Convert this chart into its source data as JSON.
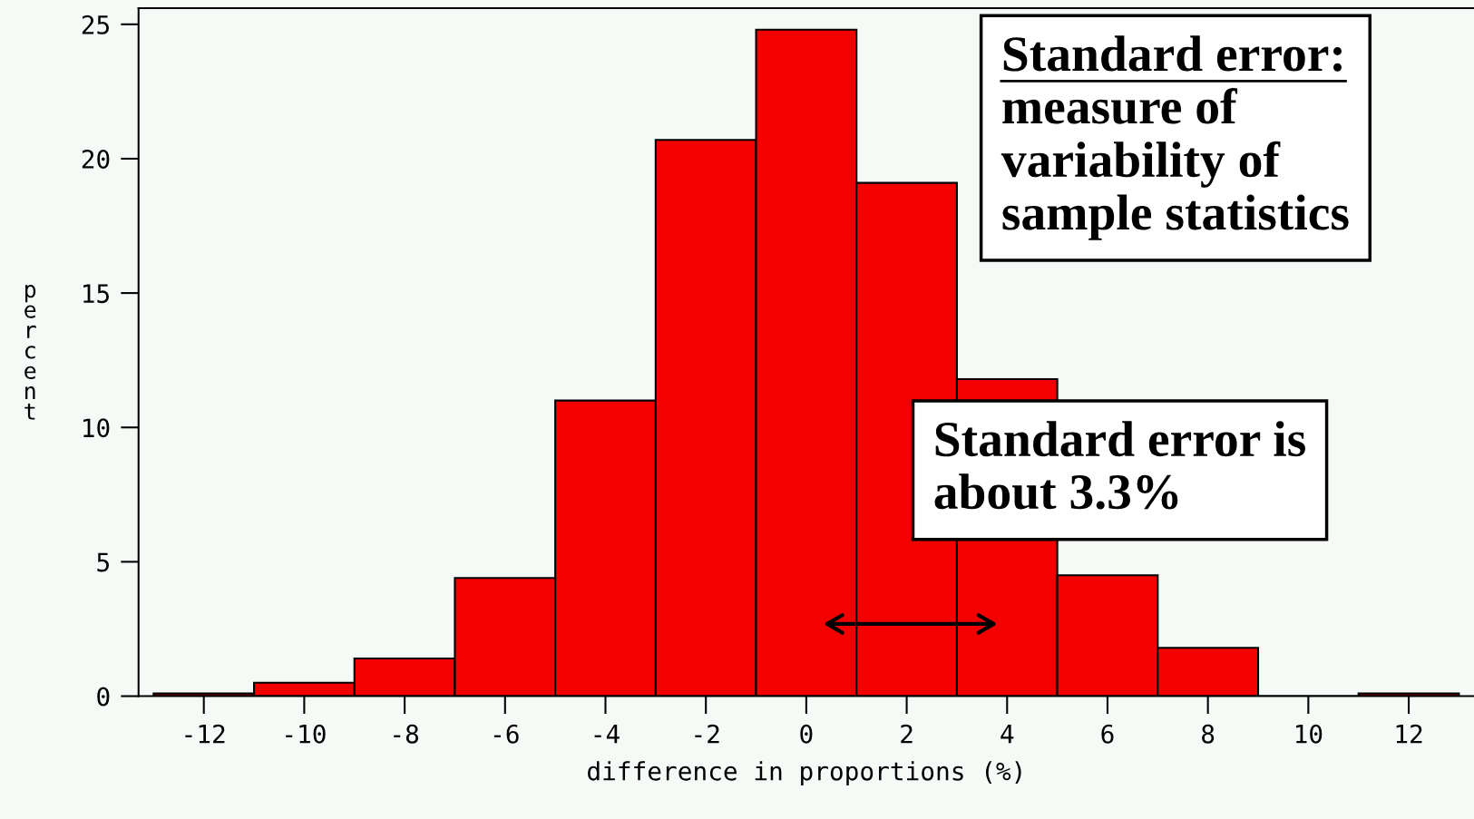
{
  "chart_data": {
    "type": "histogram",
    "xlabel": "difference in proportions (%)",
    "ylabel": "percent",
    "bins": [
      -13,
      -11,
      -9,
      -7,
      -5,
      -3,
      -1,
      1,
      3,
      5,
      7,
      9,
      11,
      13
    ],
    "values": [
      0.1,
      0.5,
      1.4,
      4.4,
      11.0,
      20.7,
      24.8,
      19.1,
      11.8,
      4.5,
      1.8,
      0,
      0.1
    ],
    "color": "#f50000",
    "xlim": [
      -13.3,
      13.3
    ],
    "ylim": [
      0,
      25.6
    ],
    "xticks": [
      {
        "value": -12,
        "label": "-12"
      },
      {
        "value": -10,
        "label": "-10"
      },
      {
        "value": -8,
        "label": "-8"
      },
      {
        "value": -6,
        "label": "-6"
      },
      {
        "value": -4,
        "label": "-4"
      },
      {
        "value": -2,
        "label": "-2"
      },
      0,
      2,
      4,
      6,
      8,
      10,
      12
    ],
    "yticks": [
      0,
      5,
      10,
      15,
      20,
      25
    ],
    "grid": false,
    "annotations": [
      "Standard error:\nmeasure of\nvariability of\nsample statistics",
      "Standard error is\nabout 3.3%"
    ]
  }
}
